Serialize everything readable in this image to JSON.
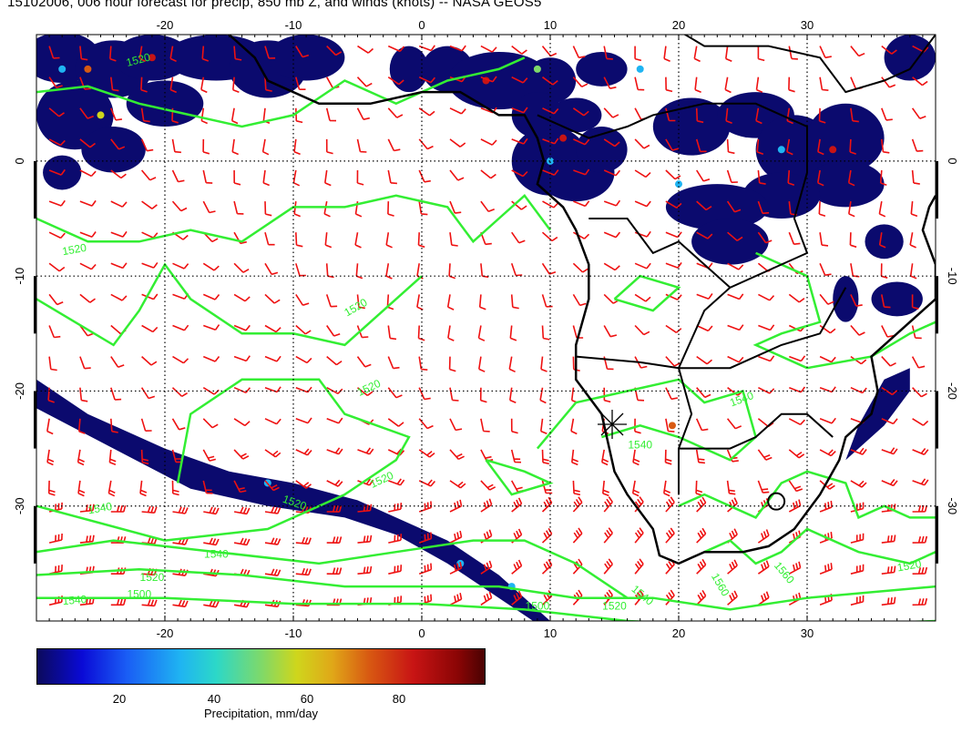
{
  "title": "15102006, 006 hour forecast for precip, 850 mb Z, and winds (knots) -- NASA GEOS5",
  "map": {
    "lon_range": [
      -30,
      40
    ],
    "lat_range": [
      -40,
      11
    ],
    "lon_ticks": [
      "-20",
      "-10",
      "0",
      "10",
      "20",
      "30"
    ],
    "lat_ticks": [
      "0",
      "-10",
      "-20",
      "-30"
    ],
    "grid": "dotted",
    "contour_color": "#33ee33",
    "wind_barb_color": "#ee1111",
    "coastline_color": "#000000",
    "contour_labels": [
      "1520",
      "1520",
      "1520",
      "1520",
      "1520",
      "1540",
      "1540",
      "1540",
      "1520",
      "1500",
      "1500",
      "1520",
      "1540",
      "1560",
      "1560",
      "1520",
      "1540",
      "1540",
      "1520"
    ]
  },
  "colorbar": {
    "ticks": [
      "20",
      "40",
      "60",
      "80"
    ],
    "title": "Precipitation, mm/day",
    "colors": [
      "#0b0a5c",
      "#0a0ad6",
      "#1fb4f2",
      "#7ed96a",
      "#cfd61c",
      "#d85a12",
      "#c81414",
      "#4a0202"
    ]
  }
}
